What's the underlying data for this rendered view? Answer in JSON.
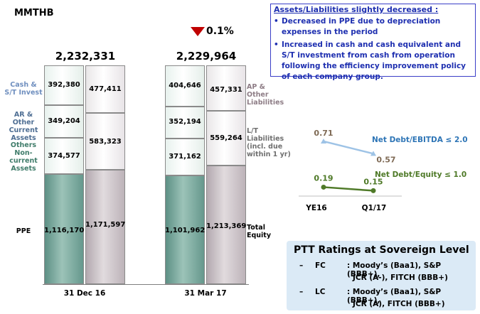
{
  "unit_label": "MMTHB",
  "change_label": "0.1%",
  "note": {
    "title": "Assets/Liabilities slightly decreased :",
    "bullets": [
      "Decreased in PPE due to depreciation expenses in the period",
      "Increased in cash and cash equivalent and S/T investment from cash from operation following the efficiency improvement policy of each company group."
    ]
  },
  "left_labels": {
    "cash": "Cash & S/T Invest",
    "ar": "AR & Other Current Assets",
    "others": "Others Non-current Assets",
    "ppe": "PPE"
  },
  "right_labels": {
    "ap": "AP & Other Liabilities",
    "lt": "L/T Liabilities (incl. due within 1 yr)",
    "equity": "Total Equity"
  },
  "colors": {
    "assets_ppe": "#7fa99f",
    "equity": "#cfc6cb",
    "arrow": "#c00000",
    "ebitda_line": "#9ec3e6",
    "equity_line": "#4f7a28",
    "ebitda_label": "#2e75b6",
    "equity_label": "#4f7a28",
    "note_text": "#1e2fb0"
  },
  "chart_data": [
    {
      "type": "bar",
      "categories": [
        "31 Dec 16",
        "31 Mar 17"
      ],
      "totals": [
        "2,232,331",
        "2,229,964"
      ],
      "assets": {
        "stack_order": [
          "PPE",
          "Others Non-current Assets",
          "AR & Other Current Assets",
          "Cash & S/T Invest"
        ],
        "31 Dec 16": {
          "PPE": 1116170,
          "Others Non-current Assets": 374577,
          "AR & Other Current Assets": 349204,
          "Cash & S/T Invest": 392380
        },
        "31 Mar 17": {
          "PPE": 1101962,
          "Others Non-current Assets": 371162,
          "AR & Other Current Assets": 352194,
          "Cash & S/T Invest": 404646
        }
      },
      "liabilities_equity": {
        "stack_order": [
          "Total Equity",
          "L/T Liabilities (incl. due within 1 yr)",
          "AP & Other Liabilities"
        ],
        "31 Dec 16": {
          "Total Equity": 1171597,
          "L/T Liabilities (incl. due within 1 yr)": 583323,
          "AP & Other Liabilities": 477411
        },
        "31 Mar 17": {
          "Total Equity": 1213369,
          "L/T Liabilities (incl. due within 1 yr)": 559264,
          "AP & Other Liabilities": 457331
        }
      },
      "display": {
        "dec_assets": [
          "392,380",
          "349,204",
          "374,577",
          "1,116,170"
        ],
        "dec_liab": [
          "477,411",
          "583,323",
          "1,171,597"
        ],
        "mar_assets": [
          "404,646",
          "352,194",
          "371,162",
          "1,101,962"
        ],
        "mar_liab": [
          "457,331",
          "559,264",
          "1,213,369"
        ]
      }
    },
    {
      "type": "line",
      "x": [
        "YE16",
        "Q1/17"
      ],
      "series": [
        {
          "name": "Net Debt/EBITDA ≤ 2.0",
          "values": [
            0.71,
            0.57
          ],
          "labels": [
            "0.71",
            "0.57"
          ]
        },
        {
          "name": "Net Debt/Equity ≤ 1.0",
          "values": [
            0.19,
            0.15
          ],
          "labels": [
            "0.19",
            "0.15"
          ]
        }
      ]
    }
  ],
  "ratings": {
    "title": "PTT Ratings at Sovereign Level",
    "rows": [
      {
        "dash": "–",
        "code": "FC",
        "line1": ": Moody’s (Baa1), S&P (BBB+),",
        "line2": "JCR (A-), FITCH (BBB+)"
      },
      {
        "dash": "–",
        "code": "LC",
        "line1": ": Moody’s (Baa1), S&P (BBB+),",
        "line2": "JCR (A), FITCH (BBB+)"
      }
    ]
  }
}
